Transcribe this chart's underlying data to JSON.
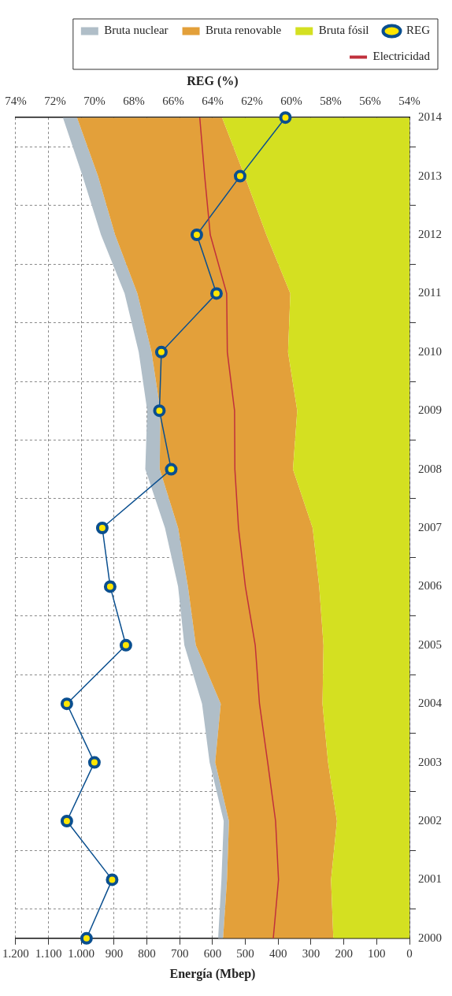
{
  "chart_data": {
    "type": "area",
    "stacked": true,
    "orientation": "horizontal",
    "categories": [
      "2014",
      "2013",
      "2012",
      "2011",
      "2010",
      "2009",
      "2008",
      "2007",
      "2006",
      "2005",
      "2004",
      "2003",
      "2002",
      "2001",
      "2000"
    ],
    "series": [
      {
        "name": "Bruta fósil",
        "color": "#d4e021",
        "values": [
          571,
          502,
          436,
          363,
          370,
          342,
          355,
          295,
          275,
          262,
          265,
          248,
          221,
          239,
          232
        ]
      },
      {
        "name": "Bruta renovable",
        "color": "#e3a03a",
        "values": [
          442,
          447,
          461,
          466,
          416,
          417,
          406,
          410,
          400,
          389,
          310,
          344,
          329,
          317,
          336
        ]
      },
      {
        "name": "Bruta nuclear",
        "color": "#b0bec8",
        "values": [
          43,
          47,
          43,
          39,
          39,
          40,
          44,
          40,
          30,
          35,
          57,
          17,
          16,
          17,
          15
        ]
      },
      {
        "name": "REG",
        "type": "line",
        "axis": "x2",
        "marker": "circle",
        "color": "#0a4f8f",
        "values": [
          60.3,
          62.6,
          64.8,
          63.8,
          66.6,
          66.7,
          66.1,
          69.6,
          69.2,
          68.4,
          71.4,
          70.0,
          71.4,
          69.1,
          70.4
        ]
      },
      {
        "name": "Electricidad",
        "type": "line",
        "marker": "none",
        "color": "#c0303c",
        "values": [
          639,
          624,
          607,
          557,
          555,
          533,
          532,
          521,
          500,
          470,
          457,
          432,
          408,
          399,
          415
        ]
      }
    ],
    "xlabel": "Energía (Mbep)",
    "x2label": "REG (%)",
    "xlim": [
      1200,
      0
    ],
    "xticks": [
      {
        "value": 1200,
        "label": "1.200"
      },
      {
        "value": 1100,
        "label": "1.100"
      },
      {
        "value": 1000,
        "label": "1.000"
      },
      900,
      800,
      700,
      600,
      500,
      400,
      300,
      200,
      100,
      0
    ],
    "x2lim": [
      74,
      54
    ],
    "x2ticks": [
      {
        "value": 74,
        "label": "74%"
      },
      {
        "value": 72,
        "label": "72%"
      },
      {
        "value": 70,
        "label": "70%"
      },
      {
        "value": 68,
        "label": "68%"
      },
      {
        "value": 66,
        "label": "66%"
      },
      {
        "value": 64,
        "label": "64%"
      },
      {
        "value": 62,
        "label": "62%"
      },
      {
        "value": 60,
        "label": "60%"
      },
      {
        "value": 58,
        "label": "58%"
      },
      {
        "value": 56,
        "label": "56%"
      },
      {
        "value": 54,
        "label": "54%"
      }
    ],
    "grid": true,
    "legend": "top right"
  }
}
